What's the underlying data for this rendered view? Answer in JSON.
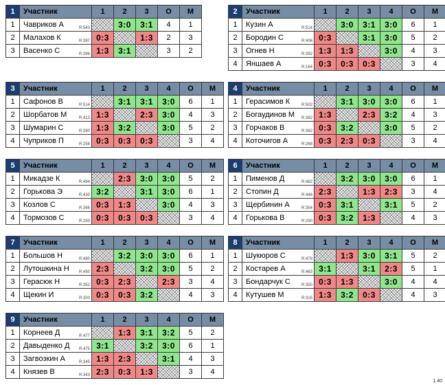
{
  "header": {
    "participant": "Участник",
    "points": "О",
    "place": "М"
  },
  "version": "1.40",
  "groups": [
    {
      "number": "1",
      "cols": [
        "1",
        "2",
        "3"
      ],
      "rows": [
        {
          "num": "1",
          "name": "Чавриков А",
          "rating": "R:543",
          "cells": [
            "",
            "3:0",
            "3:1"
          ],
          "pts": "4",
          "place": "1"
        },
        {
          "num": "2",
          "name": "Малахов К",
          "rating": "R:397",
          "cells": [
            "0:3",
            "",
            "1:3"
          ],
          "pts": "2",
          "place": "3"
        },
        {
          "num": "3",
          "name": "Васенко С",
          "rating": "R:396",
          "cells": [
            "1:3",
            "3:1",
            ""
          ],
          "pts": "3",
          "place": "2"
        }
      ]
    },
    {
      "number": "2",
      "cols": [
        "1",
        "2",
        "3",
        "4"
      ],
      "rows": [
        {
          "num": "1",
          "name": "Кузин А",
          "rating": "R:514",
          "cells": [
            "",
            "3:0",
            "3:1",
            "3:0"
          ],
          "pts": "6",
          "place": "1"
        },
        {
          "num": "2",
          "name": "Бородин С",
          "rating": "R:406",
          "cells": [
            "0:3",
            "",
            "3:1",
            "3:0"
          ],
          "pts": "5",
          "place": "2"
        },
        {
          "num": "3",
          "name": "Огнев Н",
          "rating": "R:392",
          "cells": [
            "1:3",
            "1:3",
            "",
            "3:0"
          ],
          "pts": "4",
          "place": "3"
        },
        {
          "num": "4",
          "name": "Яншаев А",
          "rating": "R:164",
          "cells": [
            "0:3",
            "0:3",
            "0:3",
            ""
          ],
          "pts": "3",
          "place": "4"
        }
      ]
    },
    {
      "number": "3",
      "cols": [
        "1",
        "2",
        "3",
        "4"
      ],
      "rows": [
        {
          "num": "1",
          "name": "Сафонов В",
          "rating": "R:514",
          "cells": [
            "",
            "3:1",
            "3:1",
            "3:0"
          ],
          "pts": "6",
          "place": "1"
        },
        {
          "num": "2",
          "name": "Шорбатов М",
          "rating": "R:413",
          "cells": [
            "1:3",
            "",
            "2:3",
            "3:0"
          ],
          "pts": "4",
          "place": "3"
        },
        {
          "num": "3",
          "name": "Шумарин С",
          "rating": "R:390",
          "cells": [
            "1:3",
            "3:2",
            "",
            "3:0"
          ],
          "pts": "5",
          "place": "2"
        },
        {
          "num": "4",
          "name": "Чуприков П",
          "rating": "R:256",
          "cells": [
            "0:3",
            "0:3",
            "0:3",
            ""
          ],
          "pts": "3",
          "place": "4"
        }
      ]
    },
    {
      "number": "4",
      "cols": [
        "1",
        "2",
        "3",
        "4"
      ],
      "rows": [
        {
          "num": "1",
          "name": "Герасимов К",
          "rating": "R:502",
          "cells": [
            "",
            "3:1",
            "3:0",
            "3:0"
          ],
          "pts": "6",
          "place": "1"
        },
        {
          "num": "2",
          "name": "Богаудинов М",
          "rating": "R:382",
          "cells": [
            "1:3",
            "",
            "2:3",
            "3:2"
          ],
          "pts": "4",
          "place": "3"
        },
        {
          "num": "3",
          "name": "Горчаков В",
          "rating": "R:382",
          "cells": [
            "0:3",
            "3:2",
            "",
            "3:0"
          ],
          "pts": "5",
          "place": "2"
        },
        {
          "num": "4",
          "name": "Коточигов А",
          "rating": "R:268",
          "cells": [
            "0:3",
            "2:3",
            "0:3",
            ""
          ],
          "pts": "3",
          "place": "4"
        }
      ]
    },
    {
      "number": "5",
      "cols": [
        "1",
        "2",
        "3",
        "4"
      ],
      "rows": [
        {
          "num": "1",
          "name": "Микадзе К",
          "rating": "R:494",
          "cells": [
            "",
            "2:3",
            "3:0",
            "3:0"
          ],
          "pts": "5",
          "place": "2"
        },
        {
          "num": "2",
          "name": "Горькова Э",
          "rating": "R:430",
          "cells": [
            "3:2",
            "",
            "3:1",
            "3:0"
          ],
          "pts": "6",
          "place": "1"
        },
        {
          "num": "3",
          "name": "Козлов С",
          "rating": "R:366",
          "cells": [
            "0:3",
            "1:3",
            "",
            "3:0"
          ],
          "pts": "4",
          "place": "3"
        },
        {
          "num": "4",
          "name": "Тормозов С",
          "rating": "R:293",
          "cells": [
            "0:3",
            "0:3",
            "0:3",
            ""
          ],
          "pts": "3",
          "place": "4"
        }
      ]
    },
    {
      "number": "6",
      "cols": [
        "1",
        "2",
        "3",
        "4"
      ],
      "rows": [
        {
          "num": "1",
          "name": "Пименов Д",
          "rating": "R:482",
          "cells": [
            "",
            "3:2",
            "3:0",
            "3:0"
          ],
          "pts": "6",
          "place": "1"
        },
        {
          "num": "2",
          "name": "Стопин Д",
          "rating": "R:446",
          "cells": [
            "2:3",
            "",
            "1:3",
            "2:3"
          ],
          "pts": "3",
          "place": "4"
        },
        {
          "num": "3",
          "name": "Щербинин А",
          "rating": "R:354",
          "cells": [
            "0:3",
            "3:1",
            "",
            "3:1"
          ],
          "pts": "5",
          "place": "2"
        },
        {
          "num": "4",
          "name": "Горькова В",
          "rating": "R:290",
          "cells": [
            "0:3",
            "3:2",
            "1:3",
            ""
          ],
          "pts": "4",
          "place": "3"
        }
      ]
    },
    {
      "number": "7",
      "cols": [
        "1",
        "2",
        "3",
        "4"
      ],
      "rows": [
        {
          "num": "1",
          "name": "Большов Н",
          "rating": "R:480",
          "cells": [
            "",
            "3:2",
            "3:0",
            "3:0"
          ],
          "pts": "6",
          "place": "1"
        },
        {
          "num": "2",
          "name": "Лутошкина Н",
          "rating": "R:450",
          "cells": [
            "2:3",
            "",
            "3:2",
            "3:0"
          ],
          "pts": "5",
          "place": "2"
        },
        {
          "num": "3",
          "name": "Герасюк Н",
          "rating": "R:352",
          "cells": [
            "0:3",
            "2:3",
            "",
            "2:3"
          ],
          "pts": "3",
          "place": "4"
        },
        {
          "num": "4",
          "name": "Щекин И",
          "rating": "R:300",
          "cells": [
            "0:3",
            "0:3",
            "3:2",
            ""
          ],
          "pts": "4",
          "place": "3"
        }
      ]
    },
    {
      "number": "8",
      "cols": [
        "1",
        "2",
        "3",
        "4"
      ],
      "rows": [
        {
          "num": "1",
          "name": "Шукюров С",
          "rating": "R:478",
          "cells": [
            "",
            "1:3",
            "3:0",
            "3:1"
          ],
          "pts": "5",
          "place": "2"
        },
        {
          "num": "2",
          "name": "Костарев А",
          "rating": "R:463",
          "cells": [
            "3:1",
            "",
            "3:1",
            "2:3"
          ],
          "pts": "5",
          "place": "1"
        },
        {
          "num": "3",
          "name": "Бондарчук С",
          "rating": "R:350",
          "cells": [
            "0:3",
            "1:3",
            "",
            "3:0"
          ],
          "pts": "4",
          "place": "4"
        },
        {
          "num": "4",
          "name": "Кутушев М",
          "rating": "R:315",
          "cells": [
            "1:3",
            "3:2",
            "0:3",
            ""
          ],
          "pts": "4",
          "place": "3"
        }
      ]
    },
    {
      "number": "9",
      "cols": [
        "1",
        "2",
        "3",
        "4"
      ],
      "rows": [
        {
          "num": "1",
          "name": "Корнеев Д",
          "rating": "R:477",
          "cells": [
            "",
            "1:3",
            "3:1",
            "3:2"
          ],
          "pts": "5",
          "place": "2"
        },
        {
          "num": "2",
          "name": "Давыденко Д",
          "rating": "R:475",
          "cells": [
            "3:1",
            "",
            "3:2",
            "3:0"
          ],
          "pts": "6",
          "place": "1"
        },
        {
          "num": "3",
          "name": "Загвозкин А",
          "rating": "R:345",
          "cells": [
            "1:3",
            "2:3",
            "",
            "3:1"
          ],
          "pts": "4",
          "place": "3"
        },
        {
          "num": "4",
          "name": "Князев В",
          "rating": "R:343",
          "cells": [
            "2:3",
            "0:3",
            "1:3",
            ""
          ],
          "pts": "3",
          "place": "4"
        }
      ]
    }
  ]
}
